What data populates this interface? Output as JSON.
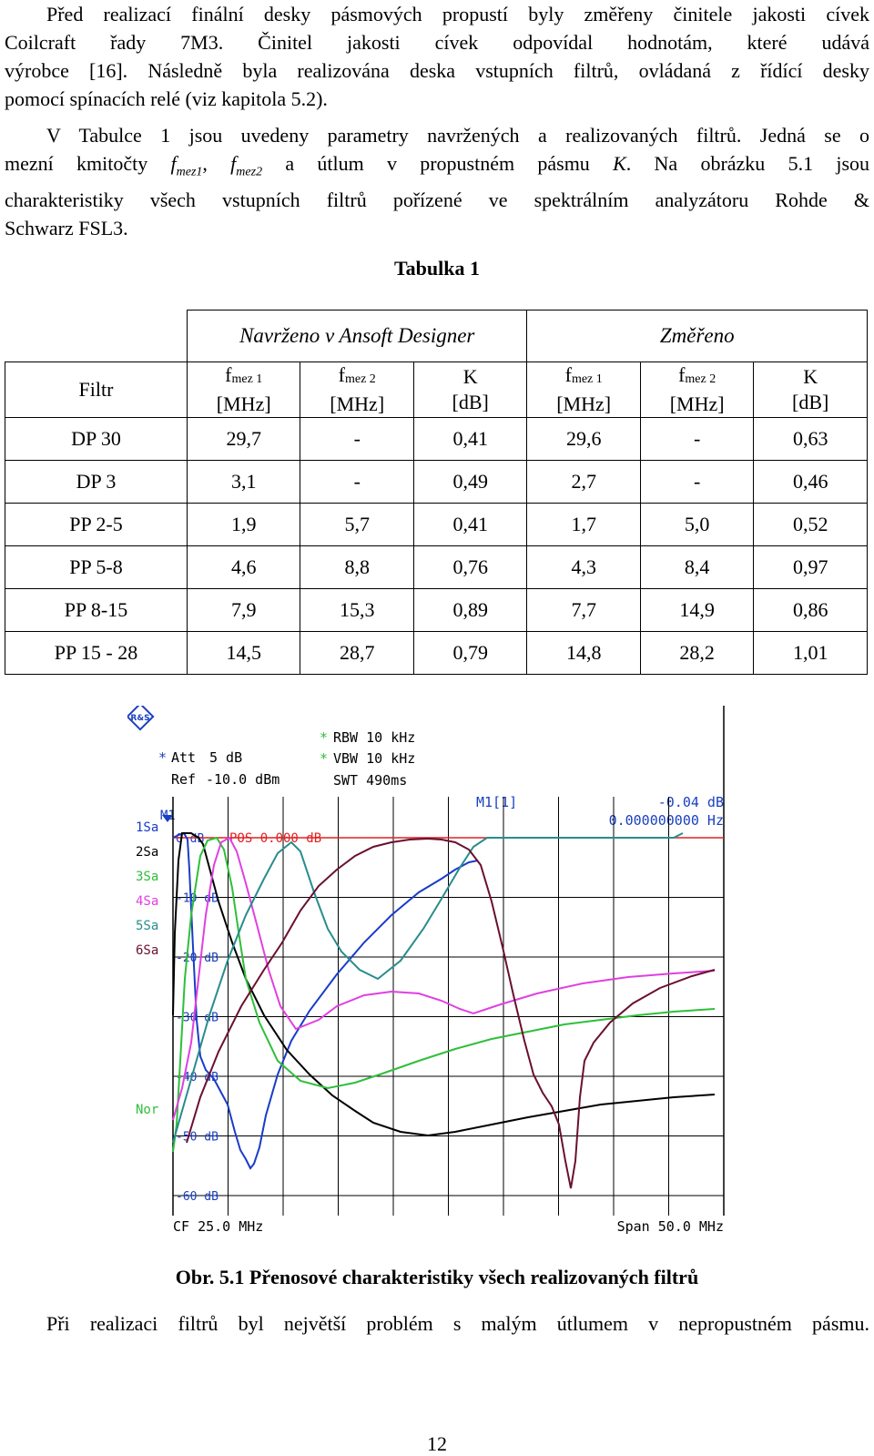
{
  "intro": {
    "p1": [
      "Před realizací finální desky pásmových propustí byly změřeny činitele jakosti cívek",
      "Coilcraft řady 7M3. Činitel jakosti cívek odpovídal hodnotám, které udává",
      "výrobce [16]. Následně byla realizována deska vstupních filtrů, ovládaná z řídící desky",
      "pomocí spínacích relé (viz kapitola 5.2)."
    ],
    "p2": [
      "V Tabulce 1 jsou uvedeny parametry navržených a realizovaných filtrů. Jedná se o",
      "mezní kmitočty",
      "f",
      "mez1",
      ", ",
      "f",
      "mez2",
      " a útlum v propustném pásmu ",
      "K",
      ". Na obrázku 5.1 jsou",
      "charakteristiky všech vstupních filtrů pořízené ve spektrálním analyzátoru Rohde &",
      "Schwarz FSL3."
    ]
  },
  "table": {
    "title": "Tabulka 1",
    "group_designed": "Navrženo v Ansoft Designer",
    "group_measured": "Změřeno",
    "col_filter": "Filtr",
    "col_f": "f",
    "sub_f1": "mez 1",
    "sub_f2": "mez 2",
    "col_k": "K",
    "unit_mhz": "[MHz]",
    "unit_db": "[dB]",
    "rows": [
      [
        "DP 30",
        "29,7",
        "-",
        "0,41",
        "29,6",
        "-",
        "0,63"
      ],
      [
        "DP 3",
        "3,1",
        "-",
        "0,49",
        "2,7",
        "-",
        "0,46"
      ],
      [
        "PP 2-5",
        "1,9",
        "5,7",
        "0,41",
        "1,7",
        "5,0",
        "0,52"
      ],
      [
        "PP 5-8",
        "4,6",
        "8,8",
        "0,76",
        "4,3",
        "8,4",
        "0,97"
      ],
      [
        "PP 8-15",
        "7,9",
        "15,3",
        "0,89",
        "7,7",
        "14,9",
        "0,86"
      ],
      [
        "PP 15 - 28",
        "14,5",
        "28,7",
        "0,79",
        "14,8",
        "28,2",
        "1,01"
      ]
    ]
  },
  "analyzer": {
    "logo": "R&S",
    "att_label": "Att",
    "att_value": "5 dB",
    "ref_label": "Ref",
    "ref_value": "-10.0 dBm",
    "rbw": "RBW 10 kHz",
    "vbw": "VBW 10 kHz",
    "swt": "SWT 490ms",
    "asterisk": "*",
    "marker_name": "M1",
    "marker_box": "M1[1]",
    "marker_level": "-0.04 dB",
    "marker_freq": "0.000000000 Hz",
    "pos_label": "POS 0.000 dB",
    "traces": [
      "1Sa",
      "2Sa",
      "3Sa",
      "4Sa",
      "5Sa",
      "6Sa"
    ],
    "trace_colors": [
      "#1a3cc8",
      "#000000",
      "#2ebf3a",
      "#e040e0",
      "#2a8c8c",
      "#6a1030"
    ],
    "nor": "Nor",
    "db_labels": [
      "0 dB",
      "-10 dB",
      "-20 dB",
      "-30 dB",
      "-40 dB",
      "-50 dB",
      "-60 dB"
    ],
    "cf": "CF 25.0 MHz",
    "span": "Span 50.0 MHz",
    "label_color": "#1a40c0",
    "ref_line_color": "#e02020"
  },
  "caption": "Obr. 5.1 Přenosové charakteristiky všech realizovaných filtrů",
  "outro": "Při realizaci filtrů byl největší problém s malým útlumem v nepropustném pásmu.",
  "page_number": "12"
}
